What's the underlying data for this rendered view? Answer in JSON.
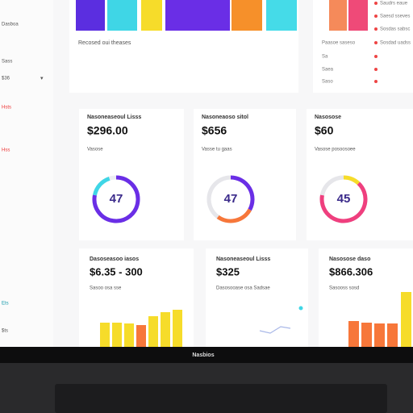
{
  "sidebar": {
    "items": [
      "Dasboa",
      "Sass",
      "$36",
      "Hsts",
      "Hss",
      "Ets",
      "$ts"
    ]
  },
  "top_card": {
    "caption": "Recosed oui theases"
  },
  "top_right": {
    "legend": [
      "Saudrs eaue",
      "Saesd sseves",
      "Sosdas sabsc",
      "Sosdad uadss"
    ],
    "list": [
      "Paasoe saseso",
      "Sa",
      "Saea",
      "Saso"
    ]
  },
  "stat_cards": [
    {
      "title": "Nasoneaseoul Lisss",
      "value": "$296.00",
      "subtitle": "Vasose",
      "gauge": "47"
    },
    {
      "title": "Nasoneaoso sitol",
      "value": "$656",
      "subtitle": "Vasse tu gaas",
      "gauge": "47"
    },
    {
      "title": "Nasosose",
      "value": "$60",
      "subtitle": "Vasose posoosoee",
      "gauge": "45"
    }
  ],
  "chart_cards": [
    {
      "title": "Dasoseasoo iasos",
      "value": "$6.35 - 300",
      "subtitle": "Sasoo osa sse"
    },
    {
      "title": "Nasoneaseoul Lisss",
      "value": "$325",
      "subtitle": "Dasosooase osa Sadsae"
    },
    {
      "title": "Nasosose daso",
      "value": "$866.306",
      "subtitle": "Sasooss sosd"
    }
  ],
  "laptop": {
    "brand": "Nasbios"
  }
}
